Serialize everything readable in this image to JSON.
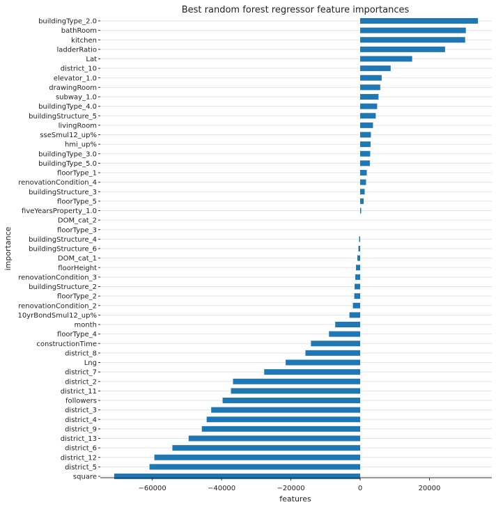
{
  "chart_data": {
    "type": "bar",
    "orientation": "horizontal",
    "title": "Best random forest regressor feature importances",
    "xlabel": "features",
    "ylabel": "importance",
    "xlim": [
      -75000,
      38000
    ],
    "xticks": [
      -60000,
      -40000,
      -20000,
      0,
      20000
    ],
    "xtick_labels": [
      "−60000",
      "−40000",
      "−20000",
      "0",
      "20000"
    ],
    "grid": "horizontal",
    "bar_color": "#1f77b4",
    "categories": [
      "buildingType_2.0",
      "bathRoom",
      "kitchen",
      "ladderRatio",
      "Lat",
      "district_10",
      "elevator_1.0",
      "drawingRoom",
      "subway_1.0",
      "buildingType_4.0",
      "buildingStructure_5",
      "livingRoom",
      "sseSmul12_up%",
      "hmi_up%",
      "buildingType_3.0",
      "buildingType_5.0",
      "floorType_1",
      "renovationCondition_4",
      "buildingStructure_3",
      "floorType_5",
      "fiveYearsProperty_1.0",
      "DOM_cat_2",
      "floorType_3",
      "buildingStructure_4",
      "buildingStructure_6",
      "DOM_cat_1",
      "floorHeight",
      "renovationCondition_3",
      "buildingStructure_2",
      "floorType_2",
      "renovationCondition_2",
      "10yrBondSmul12_up%",
      "month",
      "floorType_4",
      "constructionTime",
      "district_8",
      "Lng",
      "district_7",
      "district_2",
      "district_11",
      "followers",
      "district_3",
      "district_4",
      "district_9",
      "district_13",
      "district_6",
      "district_12",
      "district_5",
      "square"
    ],
    "values": [
      34000,
      30500,
      30300,
      24500,
      15000,
      8800,
      6200,
      5800,
      5300,
      4900,
      4500,
      3700,
      3100,
      3000,
      2900,
      2800,
      1900,
      1700,
      1300,
      1000,
      300,
      0,
      0,
      -300,
      -500,
      -800,
      -1200,
      -1400,
      -1600,
      -1700,
      -2100,
      -3100,
      -7200,
      -9000,
      -14200,
      -15800,
      -21500,
      -27700,
      -36700,
      -37300,
      -39700,
      -43000,
      -44300,
      -45700,
      -49500,
      -54200,
      -59400,
      -60800,
      -71000
    ]
  }
}
